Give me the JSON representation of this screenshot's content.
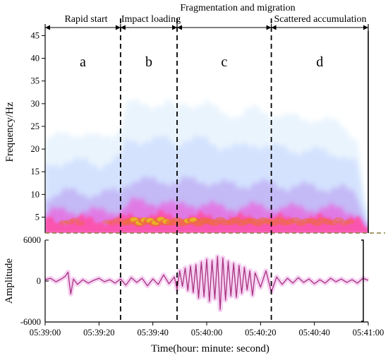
{
  "figure": {
    "stage_header": {
      "top_label": "Fragmentation and migration",
      "segments": [
        {
          "label": "Rapid start",
          "start": 0,
          "end": 28
        },
        {
          "label": "Impact loading",
          "start": 28,
          "end": 49
        },
        {
          "label": "",
          "start": 49,
          "end": 84
        },
        {
          "label": "Scattered accumulation",
          "start": 84,
          "end": 120
        }
      ]
    },
    "stage_boundaries_s": [
      28,
      49,
      84
    ],
    "stage_letters": [
      {
        "text": "a",
        "center": 14
      },
      {
        "text": "b",
        "center": 38.5
      },
      {
        "text": "c",
        "center": 66.5
      },
      {
        "text": "d",
        "center": 102
      }
    ],
    "x_axis": {
      "title": "Time(hour: minute: second)",
      "range": [
        0,
        120
      ],
      "ticks": [
        {
          "value": 0,
          "label": "05:39:00"
        },
        {
          "value": 20,
          "label": "05:39:20"
        },
        {
          "value": 40,
          "label": "05:39:40"
        },
        {
          "value": 60,
          "label": "05:40:00"
        },
        {
          "value": 80,
          "label": "05:40:20"
        },
        {
          "value": 100,
          "label": "05:40:40"
        },
        {
          "value": 120,
          "label": "05:41:00"
        }
      ]
    }
  },
  "chart_data": [
    {
      "type": "heatmap",
      "title": "",
      "xlabel": "",
      "ylabel": "Frequency/Hz",
      "xlim": [
        0,
        120
      ],
      "ylim": [
        1.5,
        46
      ],
      "yticks": [
        5,
        10,
        15,
        20,
        25,
        30,
        35,
        40,
        45
      ],
      "grid": false,
      "dominant_band_hz": [
        2,
        7
      ],
      "peak_frequency_hz": 4,
      "colors": [
        "#ffffff",
        "#e3f1fd",
        "#c3d4ff",
        "#b79af0",
        "#e86ae0",
        "#ff4fa5",
        "#ee6a44",
        "#e8c020"
      ],
      "intensity_profile": {
        "t": [
          0,
          8,
          20,
          28,
          32,
          38,
          44,
          49,
          52,
          58,
          64,
          72,
          78,
          84,
          90,
          96,
          102,
          110,
          116,
          120
        ],
        "relative_energy": [
          0.38,
          0.48,
          0.42,
          0.5,
          0.88,
          0.9,
          0.9,
          0.64,
          0.85,
          0.76,
          0.66,
          0.62,
          0.68,
          0.64,
          0.6,
          0.6,
          0.58,
          0.55,
          0.42,
          0.35
        ]
      }
    },
    {
      "type": "line",
      "title": "",
      "xlabel": "Time(hour: minute: second)",
      "ylabel": "Amplitude",
      "xlim": [
        0,
        120
      ],
      "ylim": [
        -6000,
        6000
      ],
      "yticks": [
        {
          "value": 6000,
          "label": "6000"
        },
        {
          "value": 0,
          "label": "0"
        },
        {
          "value": -6000,
          "label": "-6000"
        }
      ],
      "grid": false,
      "series": [
        {
          "color": "#a8327e",
          "x": [
            0,
            2,
            4,
            6,
            7.5,
            8.5,
            9.5,
            10.5,
            12,
            14,
            16,
            18,
            20,
            22,
            24,
            26,
            28,
            30,
            32,
            34,
            36,
            38,
            40,
            42,
            44,
            46,
            48,
            49,
            50,
            51,
            52,
            53,
            54,
            55,
            56,
            57,
            58,
            59,
            60,
            61,
            62,
            63,
            64,
            65,
            66,
            67,
            68,
            69,
            70,
            71,
            72,
            73,
            74,
            75,
            76,
            77,
            78,
            80,
            82,
            84,
            86,
            88,
            90,
            92,
            94,
            96,
            98,
            100,
            102,
            104,
            106,
            108,
            110,
            112,
            114,
            116,
            118,
            120
          ],
          "y": [
            200,
            400,
            -100,
            300,
            700,
            1300,
            -1900,
            300,
            -500,
            200,
            -300,
            100,
            400,
            -100,
            200,
            -300,
            300,
            -600,
            500,
            -200,
            400,
            -700,
            300,
            -500,
            900,
            -400,
            600,
            -1200,
            1500,
            -800,
            1900,
            -1400,
            2200,
            -1700,
            2400,
            -2500,
            2800,
            -2300,
            3200,
            -3000,
            3000,
            -2600,
            3600,
            -4200,
            3400,
            -2800,
            2900,
            -2200,
            2600,
            -2400,
            2300,
            -1800,
            2000,
            -1300,
            1500,
            -2100,
            1200,
            -900,
            1500,
            -1600,
            600,
            -500,
            400,
            -300,
            500,
            -200,
            300,
            -400,
            200,
            -300,
            400,
            -100,
            300,
            -200,
            200,
            -300,
            400,
            100
          ]
        }
      ]
    }
  ]
}
